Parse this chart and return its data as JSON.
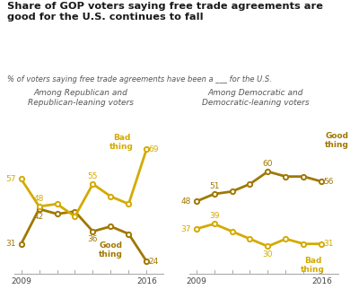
{
  "title": "Share of GOP voters saying free trade agreements are\ngood for the U.S. continues to fall",
  "subtitle": "% of voters saying free trade agreements have been a ___ for the U.S.",
  "left_panel_title": "Among Republican and\nRepublican-leaning voters",
  "right_panel_title": "Among Democratic and\nDemocratic-leaning voters",
  "left_good_x": [
    2009,
    2010,
    2011,
    2012,
    2013,
    2014,
    2015,
    2016
  ],
  "left_good_y": [
    31,
    45,
    43,
    44,
    36,
    38,
    35,
    24
  ],
  "left_bad_x": [
    2009,
    2010,
    2011,
    2012,
    2013,
    2014,
    2015,
    2016
  ],
  "left_bad_y": [
    57,
    46,
    47,
    42,
    55,
    50,
    47,
    69
  ],
  "right_good_x": [
    2009,
    2010,
    2011,
    2012,
    2013,
    2014,
    2015,
    2016
  ],
  "right_good_y": [
    48,
    51,
    52,
    55,
    60,
    58,
    58,
    56
  ],
  "right_bad_x": [
    2009,
    2010,
    2011,
    2012,
    2013,
    2014,
    2015,
    2016
  ],
  "right_bad_y": [
    37,
    39,
    36,
    33,
    30,
    33,
    31,
    31
  ],
  "color_dark": "#a07800",
  "color_light": "#d4aa00",
  "background": "#ffffff",
  "title_color": "#1a1a1a",
  "subtitle_color": "#555555",
  "panel_title_color": "#555555",
  "axis_color": "#aaaaaa",
  "tick_label_color": "#444444"
}
